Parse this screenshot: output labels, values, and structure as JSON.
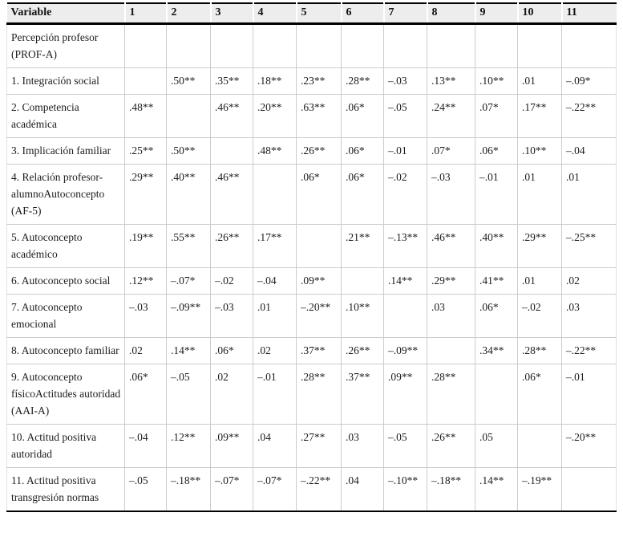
{
  "table": {
    "name": "correlation-matrix",
    "columns": [
      "Variable",
      "1",
      "2",
      "3",
      "4",
      "5",
      "6",
      "7",
      "8",
      "9",
      "10",
      "11"
    ],
    "rows": [
      {
        "label": "Percepción profesor (PROF-A)",
        "values": [
          "",
          "",
          "",
          "",
          "",
          "",
          "",
          "",
          "",
          "",
          ""
        ]
      },
      {
        "label": "1. Integración social",
        "values": [
          "",
          ".50**",
          ".35**",
          ".18**",
          ".23**",
          ".28**",
          "–.03",
          ".13**",
          ".10**",
          ".01",
          "–.09*"
        ]
      },
      {
        "label": "2. Competencia académica",
        "values": [
          ".48**",
          "",
          ".46**",
          ".20**",
          ".63**",
          ".06*",
          "–.05",
          ".24**",
          ".07*",
          ".17**",
          "–.22**"
        ]
      },
      {
        "label": "3. Implicación familiar",
        "values": [
          ".25**",
          ".50**",
          "",
          ".48**",
          ".26**",
          ".06*",
          "–.01",
          ".07*",
          ".06*",
          ".10**",
          "–.04"
        ]
      },
      {
        "label": "4. Relación profesor-alumnoAutoconcepto (AF-5)",
        "values": [
          ".29**",
          ".40**",
          ".46**",
          "",
          ".06*",
          ".06*",
          "–.02",
          "–.03",
          "–.01",
          ".01",
          ".01"
        ]
      },
      {
        "label": "5. Autoconcepto académico",
        "values": [
          ".19**",
          ".55**",
          ".26**",
          ".17**",
          "",
          ".21**",
          "–.13**",
          ".46**",
          ".40**",
          ".29**",
          "–.25**"
        ]
      },
      {
        "label": "6. Autoconcepto social",
        "values": [
          ".12**",
          "–.07*",
          "–.02",
          "–.04",
          ".09**",
          "",
          ".14**",
          ".29**",
          ".41**",
          ".01",
          ".02"
        ]
      },
      {
        "label": "7. Autoconcepto emocional",
        "values": [
          "–.03",
          "–.09**",
          "–.03",
          ".01",
          "–.20**",
          ".10**",
          "",
          ".03",
          ".06*",
          "–.02",
          ".03"
        ]
      },
      {
        "label": "8. Autoconcepto familiar",
        "values": [
          ".02",
          ".14**",
          ".06*",
          ".02",
          ".37**",
          ".26**",
          "–.09**",
          "",
          ".34**",
          ".28**",
          "–.22**"
        ]
      },
      {
        "label": "9. Autoconcepto físicoActitudes autoridad (AAI-A)",
        "values": [
          ".06*",
          "–.05",
          ".02",
          "–.01",
          ".28**",
          ".37**",
          ".09**",
          ".28**",
          "",
          ".06*",
          "–.01"
        ]
      },
      {
        "label": "10. Actitud positiva autoridad",
        "values": [
          "–.04",
          ".12**",
          ".09**",
          ".04",
          ".27**",
          ".03",
          "–.05",
          ".26**",
          ".05",
          "",
          "–.20**"
        ]
      },
      {
        "label": "11. Actitud positiva transgresión normas",
        "values": [
          "–.05",
          "–.18**",
          "–.07*",
          "–.07*",
          "–.22**",
          ".04",
          "–.10**",
          "–.18**",
          ".14**",
          "–.19**",
          ""
        ]
      }
    ]
  },
  "colors": {
    "header_background": "#ededed",
    "heavy_rule": "#000000",
    "cell_border": "#cccccc",
    "text": "#1c1c1c"
  }
}
